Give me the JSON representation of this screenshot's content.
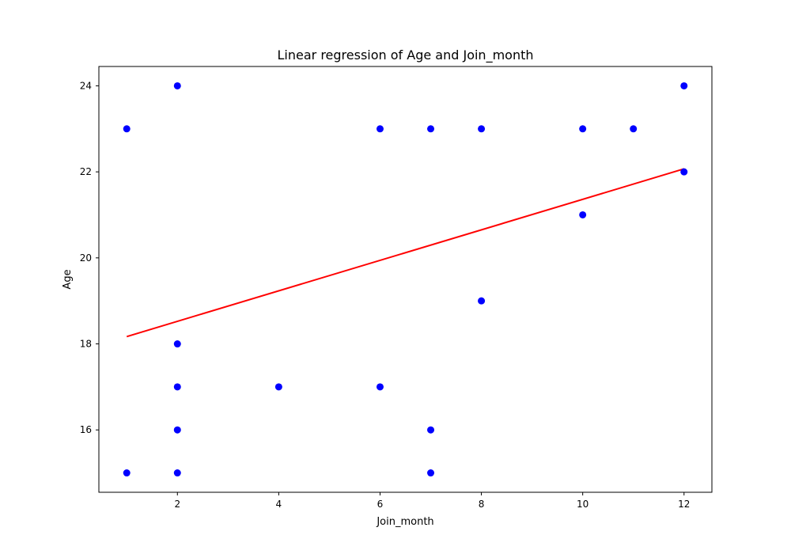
{
  "chart_data": {
    "type": "scatter",
    "title": "Linear regression of Age and Join_month",
    "xlabel": "Join_month",
    "ylabel": "Age",
    "xlim": [
      0.45,
      12.55
    ],
    "ylim": [
      14.55,
      24.45
    ],
    "xticks": [
      2,
      4,
      6,
      8,
      10,
      12
    ],
    "yticks": [
      16,
      18,
      20,
      22,
      24
    ],
    "grid": false,
    "series": [
      {
        "name": "data points",
        "kind": "scatter",
        "color": "#0000ff",
        "x": [
          1,
          1,
          2,
          2,
          2,
          2,
          2,
          4,
          6,
          6,
          7,
          7,
          7,
          8,
          8,
          10,
          10,
          11,
          12,
          12
        ],
        "y": [
          23,
          15,
          24,
          18,
          17,
          16,
          15,
          17,
          23,
          17,
          23,
          16,
          15,
          23,
          19,
          23,
          21,
          23,
          24,
          22
        ]
      },
      {
        "name": "regression line",
        "kind": "line",
        "color": "#ff0000",
        "x": [
          1,
          12
        ],
        "y": [
          18.17,
          22.07
        ]
      }
    ]
  }
}
